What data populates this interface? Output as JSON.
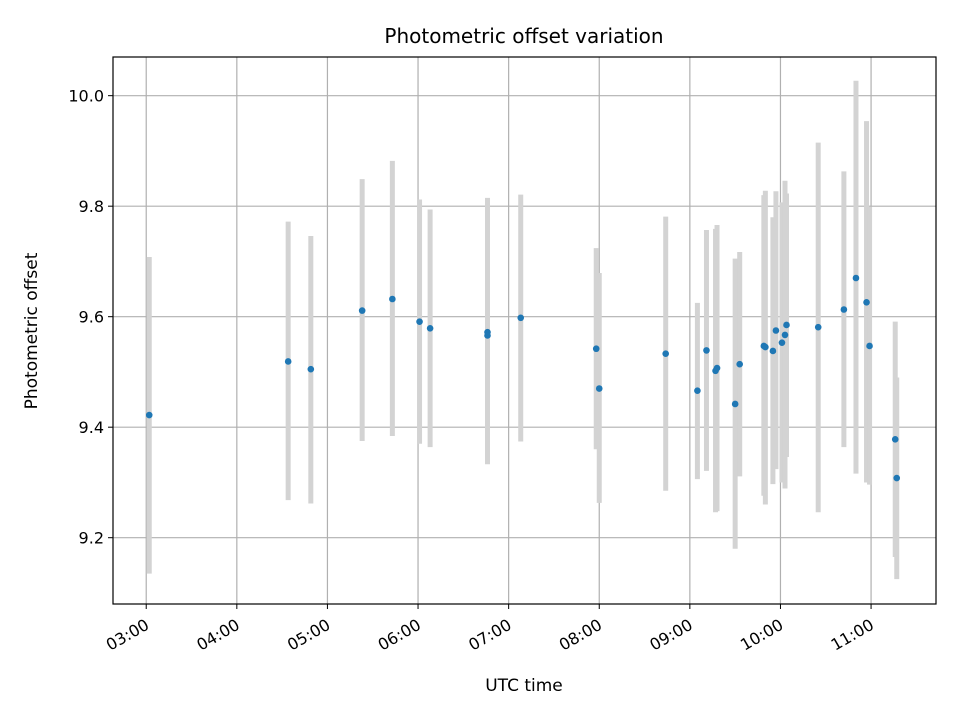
{
  "chart_data": {
    "type": "scatter",
    "title": "Photometric offset variation",
    "xlabel": "UTC time",
    "ylabel": "Photometric offset",
    "xlim": [
      "02:38",
      "11:43"
    ],
    "ylim": [
      9.08,
      10.07
    ],
    "x_ticks": [
      "03:00",
      "04:00",
      "05:00",
      "06:00",
      "07:00",
      "08:00",
      "09:00",
      "10:00",
      "11:00"
    ],
    "y_ticks": [
      "9.2",
      "9.4",
      "9.6",
      "9.8",
      "10.0"
    ],
    "grid": true,
    "colors": {
      "point": "#1f77b4",
      "errorbar": "#d3d3d3",
      "grid": "#b0b0b0"
    },
    "series": [
      {
        "points": [
          {
            "t": "03:02",
            "y": 9.422,
            "lo": 9.135,
            "hi": 9.708
          },
          {
            "t": "04:34",
            "y": 9.519,
            "lo": 9.268,
            "hi": 9.772
          },
          {
            "t": "04:49",
            "y": 9.505,
            "lo": 9.262,
            "hi": 9.746
          },
          {
            "t": "05:23",
            "y": 9.611,
            "lo": 9.375,
            "hi": 9.849
          },
          {
            "t": "05:43",
            "y": 9.632,
            "lo": 9.384,
            "hi": 9.882
          },
          {
            "t": "06:01",
            "y": 9.591,
            "lo": 9.37,
            "hi": 9.812
          },
          {
            "t": "06:08",
            "y": 9.579,
            "lo": 9.364,
            "hi": 9.794
          },
          {
            "t": "06:46",
            "y": 9.572,
            "lo": 9.333,
            "hi": 9.815
          },
          {
            "t": "06:46",
            "y": 9.566,
            "lo": 9.343,
            "hi": 9.79
          },
          {
            "t": "07:08",
            "y": 9.598,
            "lo": 9.374,
            "hi": 9.821
          },
          {
            "t": "07:58",
            "y": 9.542,
            "lo": 9.36,
            "hi": 9.724
          },
          {
            "t": "08:00",
            "y": 9.47,
            "lo": 9.263,
            "hi": 9.679
          },
          {
            "t": "08:44",
            "y": 9.533,
            "lo": 9.285,
            "hi": 9.781
          },
          {
            "t": "09:05",
            "y": 9.466,
            "lo": 9.306,
            "hi": 9.625
          },
          {
            "t": "09:11",
            "y": 9.539,
            "lo": 9.321,
            "hi": 9.757
          },
          {
            "t": "09:17",
            "y": 9.502,
            "lo": 9.246,
            "hi": 9.759
          },
          {
            "t": "09:18",
            "y": 9.507,
            "lo": 9.248,
            "hi": 9.766
          },
          {
            "t": "09:30",
            "y": 9.442,
            "lo": 9.18,
            "hi": 9.705
          },
          {
            "t": "09:33",
            "y": 9.514,
            "lo": 9.311,
            "hi": 9.717
          },
          {
            "t": "09:49",
            "y": 9.547,
            "lo": 9.276,
            "hi": 9.82
          },
          {
            "t": "09:50",
            "y": 9.545,
            "lo": 9.26,
            "hi": 9.828
          },
          {
            "t": "09:55",
            "y": 9.538,
            "lo": 9.297,
            "hi": 9.78
          },
          {
            "t": "09:57",
            "y": 9.575,
            "lo": 9.324,
            "hi": 9.827
          },
          {
            "t": "10:01",
            "y": 9.553,
            "lo": 9.3,
            "hi": 9.807
          },
          {
            "t": "10:03",
            "y": 9.567,
            "lo": 9.289,
            "hi": 9.846
          },
          {
            "t": "10:04",
            "y": 9.585,
            "lo": 9.346,
            "hi": 9.823
          },
          {
            "t": "10:25",
            "y": 9.581,
            "lo": 9.246,
            "hi": 9.915
          },
          {
            "t": "10:42",
            "y": 9.613,
            "lo": 9.364,
            "hi": 9.863
          },
          {
            "t": "10:50",
            "y": 9.67,
            "lo": 9.316,
            "hi": 10.027
          },
          {
            "t": "10:57",
            "y": 9.626,
            "lo": 9.3,
            "hi": 9.954
          },
          {
            "t": "10:59",
            "y": 9.547,
            "lo": 9.296,
            "hi": 9.799
          },
          {
            "t": "11:16",
            "y": 9.378,
            "lo": 9.165,
            "hi": 9.591
          },
          {
            "t": "11:17",
            "y": 9.308,
            "lo": 9.125,
            "hi": 9.49
          }
        ]
      }
    ]
  }
}
